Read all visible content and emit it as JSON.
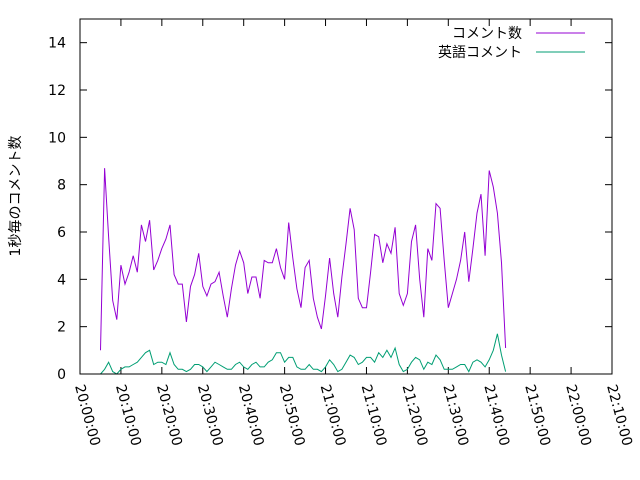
{
  "chart_data": {
    "type": "line",
    "ylabel": "1秒毎のコメント数",
    "ylim": [
      0,
      15
    ],
    "y_ticks": [
      0,
      2,
      4,
      6,
      8,
      10,
      12,
      14
    ],
    "x_ticks": [
      "20:00:00",
      "20:10:00",
      "20:20:00",
      "20:30:00",
      "20:40:00",
      "20:50:00",
      "21:00:00",
      "21:10:00",
      "21:20:00",
      "21:30:00",
      "21:40:00",
      "21:50:00",
      "22:00:00",
      "22:10:00"
    ],
    "xlim_minutes": [
      0,
      130
    ],
    "legend_position": "top-right",
    "grid": false,
    "series": [
      {
        "name": "コメント数",
        "color": "#9400d3",
        "points": [
          [
            5,
            1.0
          ],
          [
            6,
            8.7
          ],
          [
            7,
            5.8
          ],
          [
            8,
            3.1
          ],
          [
            9,
            2.3
          ],
          [
            10,
            4.6
          ],
          [
            11,
            3.8
          ],
          [
            12,
            4.3
          ],
          [
            13,
            5.0
          ],
          [
            14,
            4.3
          ],
          [
            15,
            6.3
          ],
          [
            16,
            5.6
          ],
          [
            17,
            6.5
          ],
          [
            18,
            4.4
          ],
          [
            19,
            4.8
          ],
          [
            20,
            5.3
          ],
          [
            21,
            5.7
          ],
          [
            22,
            6.3
          ],
          [
            23,
            4.2
          ],
          [
            24,
            3.8
          ],
          [
            25,
            3.8
          ],
          [
            26,
            2.2
          ],
          [
            27,
            3.7
          ],
          [
            28,
            4.2
          ],
          [
            29,
            5.1
          ],
          [
            30,
            3.7
          ],
          [
            31,
            3.3
          ],
          [
            32,
            3.8
          ],
          [
            33,
            3.9
          ],
          [
            34,
            4.3
          ],
          [
            35,
            3.3
          ],
          [
            36,
            2.4
          ],
          [
            37,
            3.6
          ],
          [
            38,
            4.6
          ],
          [
            39,
            5.2
          ],
          [
            40,
            4.7
          ],
          [
            41,
            3.4
          ],
          [
            42,
            4.1
          ],
          [
            43,
            4.1
          ],
          [
            44,
            3.2
          ],
          [
            45,
            4.8
          ],
          [
            46,
            4.7
          ],
          [
            47,
            4.7
          ],
          [
            48,
            5.3
          ],
          [
            49,
            4.5
          ],
          [
            50,
            4.0
          ],
          [
            51,
            6.4
          ],
          [
            52,
            4.9
          ],
          [
            53,
            3.6
          ],
          [
            54,
            2.8
          ],
          [
            55,
            4.5
          ],
          [
            56,
            4.8
          ],
          [
            57,
            3.2
          ],
          [
            58,
            2.4
          ],
          [
            59,
            1.9
          ],
          [
            60,
            3.3
          ],
          [
            61,
            4.9
          ],
          [
            62,
            3.4
          ],
          [
            63,
            2.4
          ],
          [
            64,
            4.1
          ],
          [
            65,
            5.5
          ],
          [
            66,
            7.0
          ],
          [
            67,
            6.1
          ],
          [
            68,
            3.2
          ],
          [
            69,
            2.8
          ],
          [
            70,
            2.8
          ],
          [
            71,
            4.3
          ],
          [
            72,
            5.9
          ],
          [
            73,
            5.8
          ],
          [
            74,
            4.7
          ],
          [
            75,
            5.5
          ],
          [
            76,
            5.1
          ],
          [
            77,
            6.2
          ],
          [
            78,
            3.4
          ],
          [
            79,
            2.9
          ],
          [
            80,
            3.4
          ],
          [
            81,
            5.6
          ],
          [
            82,
            6.3
          ],
          [
            83,
            4.0
          ],
          [
            84,
            2.4
          ],
          [
            85,
            5.3
          ],
          [
            86,
            4.8
          ],
          [
            87,
            7.2
          ],
          [
            88,
            7.0
          ],
          [
            89,
            4.8
          ],
          [
            90,
            2.8
          ],
          [
            91,
            3.4
          ],
          [
            92,
            4.0
          ],
          [
            93,
            4.8
          ],
          [
            94,
            6.0
          ],
          [
            95,
            3.9
          ],
          [
            96,
            5.3
          ],
          [
            97,
            6.8
          ],
          [
            98,
            7.6
          ],
          [
            99,
            5.0
          ],
          [
            100,
            8.6
          ],
          [
            101,
            7.9
          ],
          [
            102,
            6.8
          ],
          [
            103,
            4.7
          ],
          [
            104,
            1.1
          ]
        ]
      },
      {
        "name": "英語コメント",
        "color": "#009e73",
        "points": [
          [
            5,
            0.0
          ],
          [
            6,
            0.2
          ],
          [
            7,
            0.5
          ],
          [
            8,
            0.1
          ],
          [
            9,
            0.0
          ],
          [
            10,
            0.2
          ],
          [
            11,
            0.3
          ],
          [
            12,
            0.3
          ],
          [
            13,
            0.4
          ],
          [
            14,
            0.5
          ],
          [
            15,
            0.7
          ],
          [
            16,
            0.9
          ],
          [
            17,
            1.0
          ],
          [
            18,
            0.4
          ],
          [
            19,
            0.5
          ],
          [
            20,
            0.5
          ],
          [
            21,
            0.4
          ],
          [
            22,
            0.9
          ],
          [
            23,
            0.4
          ],
          [
            24,
            0.2
          ],
          [
            25,
            0.2
          ],
          [
            26,
            0.1
          ],
          [
            27,
            0.2
          ],
          [
            28,
            0.4
          ],
          [
            29,
            0.4
          ],
          [
            30,
            0.3
          ],
          [
            31,
            0.1
          ],
          [
            32,
            0.3
          ],
          [
            33,
            0.5
          ],
          [
            34,
            0.4
          ],
          [
            35,
            0.3
          ],
          [
            36,
            0.2
          ],
          [
            37,
            0.2
          ],
          [
            38,
            0.4
          ],
          [
            39,
            0.5
          ],
          [
            40,
            0.3
          ],
          [
            41,
            0.2
          ],
          [
            42,
            0.4
          ],
          [
            43,
            0.5
          ],
          [
            44,
            0.3
          ],
          [
            45,
            0.3
          ],
          [
            46,
            0.5
          ],
          [
            47,
            0.6
          ],
          [
            48,
            0.9
          ],
          [
            49,
            0.9
          ],
          [
            50,
            0.5
          ],
          [
            51,
            0.7
          ],
          [
            52,
            0.7
          ],
          [
            53,
            0.3
          ],
          [
            54,
            0.2
          ],
          [
            55,
            0.2
          ],
          [
            56,
            0.4
          ],
          [
            57,
            0.2
          ],
          [
            58,
            0.2
          ],
          [
            59,
            0.1
          ],
          [
            60,
            0.3
          ],
          [
            61,
            0.6
          ],
          [
            62,
            0.4
          ],
          [
            63,
            0.1
          ],
          [
            64,
            0.2
          ],
          [
            65,
            0.5
          ],
          [
            66,
            0.8
          ],
          [
            67,
            0.7
          ],
          [
            68,
            0.4
          ],
          [
            69,
            0.5
          ],
          [
            70,
            0.7
          ],
          [
            71,
            0.7
          ],
          [
            72,
            0.5
          ],
          [
            73,
            0.9
          ],
          [
            74,
            0.7
          ],
          [
            75,
            1.0
          ],
          [
            76,
            0.7
          ],
          [
            77,
            1.1
          ],
          [
            78,
            0.4
          ],
          [
            79,
            0.1
          ],
          [
            80,
            0.2
          ],
          [
            81,
            0.5
          ],
          [
            82,
            0.7
          ],
          [
            83,
            0.6
          ],
          [
            84,
            0.2
          ],
          [
            85,
            0.5
          ],
          [
            86,
            0.4
          ],
          [
            87,
            0.8
          ],
          [
            88,
            0.6
          ],
          [
            89,
            0.2
          ],
          [
            90,
            0.2
          ],
          [
            91,
            0.2
          ],
          [
            92,
            0.3
          ],
          [
            93,
            0.4
          ],
          [
            94,
            0.4
          ],
          [
            95,
            0.1
          ],
          [
            96,
            0.5
          ],
          [
            97,
            0.6
          ],
          [
            98,
            0.5
          ],
          [
            99,
            0.3
          ],
          [
            100,
            0.6
          ],
          [
            101,
            1.0
          ],
          [
            102,
            1.7
          ],
          [
            103,
            0.8
          ],
          [
            104,
            0.1
          ]
        ]
      }
    ]
  }
}
